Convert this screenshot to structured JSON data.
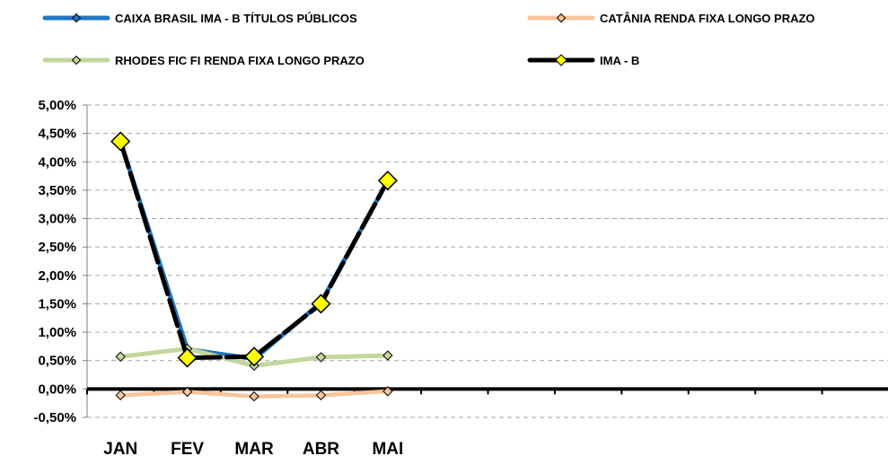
{
  "chart_data": {
    "type": "line",
    "title": "",
    "xlabel": "",
    "ylabel": "",
    "categories": [
      "JAN",
      "FEV",
      "MAR",
      "ABR",
      "MAI"
    ],
    "x_slots": 12,
    "ylim": [
      -0.5,
      5.0
    ],
    "y_ticks": [
      "-0,50%",
      "0,00%",
      "0,50%",
      "1,00%",
      "1,50%",
      "2,00%",
      "2,50%",
      "3,00%",
      "3,50%",
      "4,00%",
      "4,50%",
      "5,00%"
    ],
    "y_tick_values": [
      -0.5,
      0,
      0.5,
      1.0,
      1.5,
      2.0,
      2.5,
      3.0,
      3.5,
      4.0,
      4.5,
      5.0
    ],
    "grid": "horizontal dashed",
    "legend_position": "top",
    "series": [
      {
        "name": "CAIXA BRASIL IMA - B TÍTULOS PÚBLICOS",
        "values": [
          4.36,
          0.7,
          0.53,
          1.52,
          3.67
        ],
        "color": "#1f77c2",
        "marker_color": "#1f77c2"
      },
      {
        "name": "CATÂNIA RENDA FIXA LONGO PRAZO",
        "values": [
          -0.11,
          -0.05,
          -0.13,
          -0.11,
          -0.04
        ],
        "color": "#f9c49a",
        "marker_color": "#f9c49a"
      },
      {
        "name": "RHODES FIC FI RENDA FIXA LONGO PRAZO",
        "values": [
          0.57,
          0.71,
          0.41,
          0.56,
          0.59
        ],
        "color": "#c3d69b",
        "marker_color": "#c3d69b"
      },
      {
        "name": "IMA - B",
        "values": [
          4.36,
          0.55,
          0.57,
          1.5,
          3.67
        ],
        "color": "#000000",
        "marker_color": "#ffff00",
        "dashed": true
      }
    ]
  }
}
